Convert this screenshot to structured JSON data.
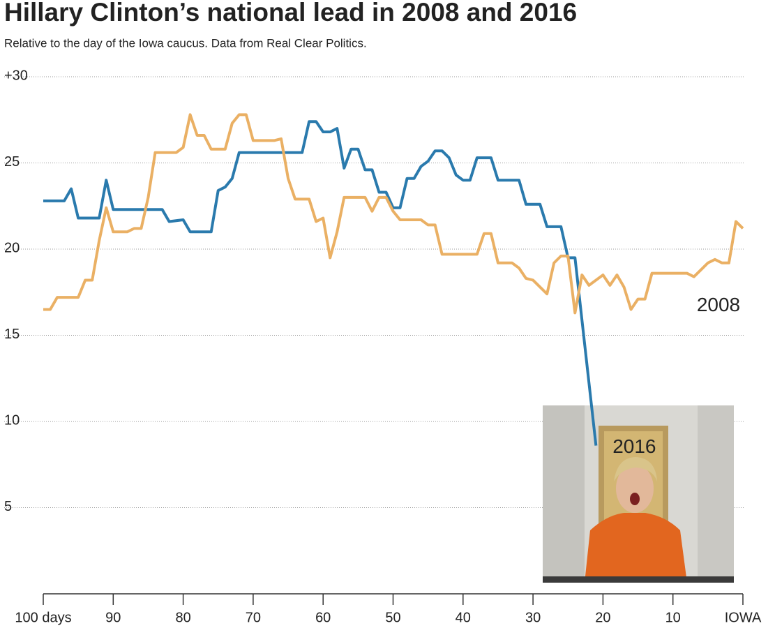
{
  "chart_data": {
    "type": "line",
    "title": "Hillary Clinton’s national lead in 2008 and 2016",
    "subtitle": "Relative to the day of the Iowa caucus. Data from Real Clear Politics.",
    "xlim": [
      100,
      0
    ],
    "xticks": [
      {
        "value": 100,
        "label": "100 days"
      },
      90,
      80,
      70,
      60,
      50,
      40,
      30,
      20,
      10,
      {
        "value": 0,
        "label": "IOWA"
      }
    ],
    "ylim": [
      0,
      30
    ],
    "yticks": [
      {
        "value": 30,
        "label": "+30"
      },
      25,
      20,
      15,
      10,
      5
    ],
    "grid": true,
    "series": [
      {
        "name": "2016",
        "color": "#2a7aad",
        "x": [
          100,
          97,
          96,
          95,
          92,
          91,
          90,
          83,
          82,
          80,
          79,
          76,
          75,
          74,
          73,
          72,
          63,
          62,
          61,
          60,
          59,
          58,
          57,
          56,
          55,
          54,
          53,
          52,
          51,
          50,
          49,
          48,
          47,
          46,
          45,
          44,
          43,
          42,
          41,
          40,
          39,
          38,
          36,
          35,
          32,
          31,
          29,
          28,
          26,
          25,
          24,
          21
        ],
        "values": [
          22.8,
          22.8,
          23.5,
          21.8,
          21.8,
          24.0,
          22.3,
          22.3,
          21.6,
          21.7,
          21.0,
          21.0,
          23.4,
          23.6,
          24.1,
          25.6,
          25.6,
          27.4,
          27.4,
          26.8,
          26.8,
          27.0,
          24.7,
          25.8,
          25.8,
          24.6,
          24.6,
          23.3,
          23.3,
          22.4,
          22.4,
          24.1,
          24.1,
          24.8,
          25.1,
          25.7,
          25.7,
          25.3,
          24.3,
          24.0,
          24.0,
          25.3,
          25.3,
          24.0,
          24.0,
          22.6,
          22.6,
          21.3,
          21.3,
          19.5,
          19.5,
          8.6
        ]
      },
      {
        "name": "2008",
        "color": "#eab064",
        "x": [
          100,
          99,
          98,
          95,
          94,
          93,
          92,
          91,
          90,
          88,
          87,
          86,
          85,
          84,
          81,
          80,
          79,
          78,
          77,
          76,
          74,
          73,
          72,
          71,
          70,
          67,
          66,
          65,
          64,
          62,
          61,
          60,
          59,
          58,
          57,
          54,
          53,
          52,
          51,
          50,
          49,
          46,
          45,
          44,
          43,
          38,
          37,
          36,
          35,
          33,
          32,
          31,
          30,
          28,
          27,
          26,
          25,
          24,
          23,
          22,
          20,
          19,
          18,
          17,
          16,
          15,
          14,
          13,
          8,
          7,
          6,
          5,
          4,
          3,
          2,
          1,
          0
        ],
        "values": [
          16.5,
          16.5,
          17.2,
          17.2,
          18.2,
          18.2,
          20.5,
          22.4,
          21.0,
          21.0,
          21.2,
          21.2,
          23.0,
          25.6,
          25.6,
          25.9,
          27.8,
          26.6,
          26.6,
          25.8,
          25.8,
          27.3,
          27.8,
          27.8,
          26.3,
          26.3,
          26.4,
          24.1,
          22.9,
          22.9,
          21.6,
          21.8,
          19.5,
          21.0,
          23.0,
          23.0,
          22.2,
          23.0,
          23.0,
          22.2,
          21.7,
          21.7,
          21.4,
          21.4,
          19.7,
          19.7,
          20.9,
          20.9,
          19.2,
          19.2,
          18.9,
          18.3,
          18.2,
          17.4,
          19.2,
          19.6,
          19.6,
          16.3,
          18.5,
          17.9,
          18.5,
          17.9,
          18.5,
          17.8,
          16.5,
          17.1,
          17.1,
          18.6,
          18.6,
          18.4,
          18.8,
          19.2,
          19.4,
          19.2,
          19.2,
          21.6,
          21.2
        ]
      }
    ]
  }
}
